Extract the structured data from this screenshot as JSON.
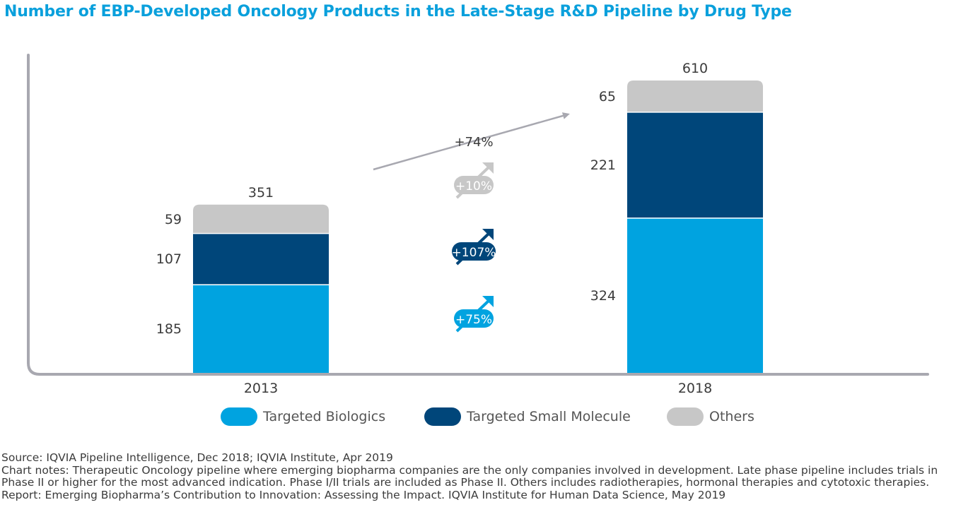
{
  "chart_data": {
    "type": "bar",
    "stacked": true,
    "title": "Number of EBP-Developed Oncology Products in the Late-Stage R&D Pipeline by Drug Type",
    "categories": [
      "2013",
      "2018"
    ],
    "series": [
      {
        "name": "Targeted Biologics",
        "values": [
          185,
          324
        ],
        "color": "#00a3e0"
      },
      {
        "name": "Targeted Small Molecule",
        "values": [
          107,
          221
        ],
        "color": "#00467a"
      },
      {
        "name": "Others",
        "values": [
          59,
          65
        ],
        "color": "#c7c7c7"
      }
    ],
    "totals": [
      "351",
      "610"
    ],
    "value_labels": [
      [
        "185",
        "107",
        "59"
      ],
      [
        "324",
        "221",
        "65"
      ]
    ],
    "ylim": [
      0,
      700
    ],
    "total_change": "+74%",
    "series_changes": [
      {
        "series": "Others",
        "label": "+10%",
        "color": "#c7c7c7"
      },
      {
        "series": "Targeted Small Molecule",
        "label": "+107%",
        "color": "#00467a"
      },
      {
        "series": "Targeted Biologics",
        "label": "+75%",
        "color": "#00a3e0"
      }
    ],
    "legend": [
      "Targeted Biologics",
      "Targeted Small Molecule",
      "Others"
    ],
    "legend_position": "bottom"
  },
  "notes": {
    "source": "Source: IQVIA Pipeline Intelligence, Dec 2018; IQVIA Institute, Apr 2019",
    "chart_notes": "Chart notes: Therapeutic Oncology pipeline where emerging biopharma companies are the only companies involved in development. Late phase pipeline includes trials in Phase II or higher for the most advanced indication. Phase I/II trials are included as Phase II. Others includes radiotherapies, hormonal therapies and cytotoxic therapies.",
    "report": "Report: Emerging Biopharma’s Contribution to Innovation: Assessing the Impact. IQVIA Institute for Human Data Science, May 2019"
  }
}
